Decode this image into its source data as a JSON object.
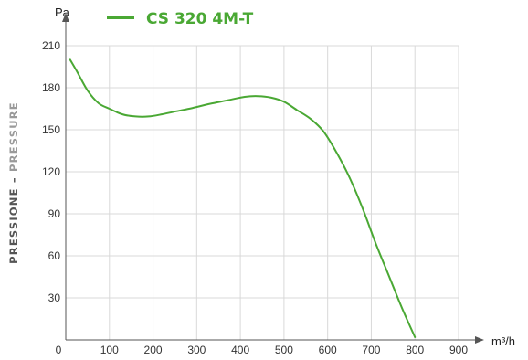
{
  "chart_data": {
    "type": "line",
    "xlabel": "m³/h",
    "ylabel_it": "PRESSIONE",
    "ylabel_sep": " – ",
    "ylabel_en": "PRESSURE",
    "yunit": "Pa",
    "xlim": [
      0,
      900
    ],
    "ylim": [
      0,
      210
    ],
    "xticks": [
      0,
      100,
      200,
      300,
      400,
      500,
      600,
      700,
      800,
      900
    ],
    "yticks": [
      30,
      60,
      90,
      120,
      150,
      180,
      210
    ],
    "grid": true,
    "legend_position": "top-center",
    "series": [
      {
        "name": "CS 320 4M-T",
        "color": "#4aa834",
        "x": [
          10,
          25,
          50,
          75,
          100,
          130,
          160,
          190,
          220,
          250,
          290,
          330,
          370,
          410,
          440,
          470,
          500,
          530,
          560,
          590,
          620,
          650,
          680,
          710,
          740,
          770,
          800
        ],
        "y": [
          200,
          192,
          178,
          169,
          165,
          161,
          159.5,
          159.5,
          161,
          163,
          165.5,
          168.5,
          171,
          173.5,
          174,
          173,
          170,
          164,
          158,
          149,
          134,
          116,
          94,
          69,
          46,
          23,
          2
        ]
      }
    ]
  },
  "colors": {
    "grid": "#d9d9d9",
    "axis": "#555555",
    "ylabel_it": "#555555",
    "ylabel_en": "#9a9a9a"
  }
}
